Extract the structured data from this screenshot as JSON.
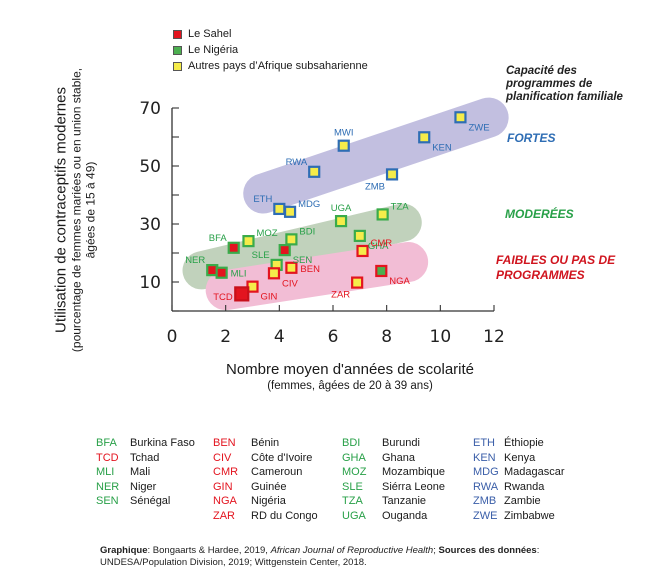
{
  "chart_data": {
    "type": "scatter",
    "title": "",
    "xlabel": "Nombre moyen d'années de scolarité",
    "xlabel_sub": "(femmes, âgées de 20 à 39 ans)",
    "ylabel": "Utilisation de contraceptifs modernes",
    "ylabel_sub1": "(pourcentage de femmes mariées ou en union stable,",
    "ylabel_sub2": "âgées de 15 à 49)",
    "xlim": [
      0,
      12
    ],
    "ylim": [
      0,
      70
    ],
    "x_ticks": [
      0,
      2,
      4,
      6,
      8,
      10,
      12
    ],
    "x_tick_labels": [
      "0",
      "2",
      "4",
      "6",
      "8",
      "10",
      "12"
    ],
    "y_ticks": [
      0,
      10,
      20,
      30,
      40,
      50,
      60,
      70
    ],
    "y_tick_labels": [
      {
        "value": 70,
        "label": "70"
      },
      {
        "value": 50,
        "label": "50"
      },
      {
        "value": 30,
        "label": "30"
      },
      {
        "value": 10,
        "label": "10"
      }
    ],
    "grid": false,
    "legend": {
      "placement": "top-left",
      "entries": [
        {
          "label": "Le Sahel",
          "fill": "#e3141f"
        },
        {
          "label": "Le Nigéria",
          "fill": "#4caf50"
        },
        {
          "label": "Autres pays d’Afrique subsaharienne",
          "fill": "#f5ec4a"
        }
      ]
    },
    "capacity_title": [
      "Capacité des",
      "programmes de",
      "planification familiale"
    ],
    "bands": [
      {
        "name": "FORTES",
        "label": "FORTES",
        "color": "#c2bfe0",
        "label_color": "#2e6db4",
        "from": [
          3.4,
          40.5
        ],
        "to": [
          11.8,
          66.7
        ]
      },
      {
        "name": "MODEREES",
        "label": "MODERÉES",
        "color": "#c1d2bc",
        "label_color": "#28a048",
        "from": [
          1.1,
          14.0
        ],
        "to": [
          8.6,
          30.5
        ]
      },
      {
        "name": "FAIBLES",
        "label_lines": [
          "FAIBLES OU PAS DE",
          "PROGRAMMES"
        ],
        "color": "#f2bdd5",
        "label_color": "#d0141e",
        "from": [
          2.0,
          7.2
        ],
        "to": [
          8.8,
          16.9
        ]
      }
    ],
    "series": [
      {
        "name": "Fortes",
        "border": "#2e6db4",
        "label_color": "#2e6db4",
        "points": [
          {
            "code": "ZWE",
            "x": 10.75,
            "y": 66.8,
            "group": "autres",
            "label_pos": "right-below"
          },
          {
            "code": "KEN",
            "x": 9.4,
            "y": 59.9,
            "group": "autres",
            "label_pos": "right-below"
          },
          {
            "code": "MWI",
            "x": 6.4,
            "y": 57.0,
            "group": "autres",
            "label_pos": "above"
          },
          {
            "code": "RWA",
            "x": 5.3,
            "y": 48.0,
            "group": "autres",
            "label_pos": "left-above"
          },
          {
            "code": "ZMB",
            "x": 8.2,
            "y": 47.1,
            "group": "autres",
            "label_pos": "left-below"
          },
          {
            "code": "ETH",
            "x": 4.0,
            "y": 35.2,
            "group": "autres",
            "label_pos": "left-above"
          },
          {
            "code": "MDG",
            "x": 4.4,
            "y": 34.2,
            "group": "autres",
            "label_pos": "right-above"
          }
        ]
      },
      {
        "name": "Moderees",
        "border": "#3aab4a",
        "label_color": "#28a048",
        "points": [
          {
            "code": "UGA",
            "x": 6.3,
            "y": 31.0,
            "group": "autres",
            "label_pos": "above"
          },
          {
            "code": "TZA",
            "x": 7.85,
            "y": 33.3,
            "group": "autres",
            "label_pos": "right-above"
          },
          {
            "code": "GHA",
            "x": 7.0,
            "y": 25.9,
            "group": "autres",
            "label_pos": "right-below"
          },
          {
            "code": "MOZ",
            "x": 2.85,
            "y": 24.1,
            "group": "autres",
            "label_pos": "right-above"
          },
          {
            "code": "BDI",
            "x": 4.45,
            "y": 24.7,
            "group": "autres",
            "label_pos": "right-above"
          },
          {
            "code": "BFA",
            "x": 2.3,
            "y": 21.8,
            "group": "sahel",
            "label_pos": "left-above"
          },
          {
            "code": "SEN",
            "x": 4.2,
            "y": 21.0,
            "group": "sahel",
            "label_pos": "right-below"
          },
          {
            "code": "NER",
            "x": 1.5,
            "y": 14.1,
            "group": "sahel",
            "label_pos": "left-above"
          },
          {
            "code": "MLI",
            "x": 1.85,
            "y": 13.2,
            "group": "sahel",
            "label_pos": "right"
          },
          {
            "code": "SLE",
            "x": 3.9,
            "y": 15.9,
            "group": "autres",
            "label_pos": "left-above"
          }
        ]
      },
      {
        "name": "Faibles",
        "border": "#e3141f",
        "label_color": "#e3141f",
        "points": [
          {
            "code": "CMR",
            "x": 7.1,
            "y": 20.7,
            "group": "autres",
            "label_pos": "right-above"
          },
          {
            "code": "BEN",
            "x": 4.45,
            "y": 14.9,
            "group": "autres",
            "label_pos": "right"
          },
          {
            "code": "CIV",
            "x": 3.8,
            "y": 13.0,
            "group": "autres",
            "label_pos": "right-below"
          },
          {
            "code": "NGA",
            "x": 7.8,
            "y": 13.8,
            "group": "nigeria",
            "label_pos": "right-below"
          },
          {
            "code": "ZAR",
            "x": 6.9,
            "y": 9.8,
            "group": "autres",
            "label_pos": "left-below"
          },
          {
            "code": "GIN",
            "x": 3.0,
            "y": 8.4,
            "group": "autres",
            "label_pos": "right-below"
          },
          {
            "code": "TCD",
            "x": 2.6,
            "y": 5.9,
            "group": "sahel",
            "label_pos": "left",
            "large": true
          }
        ]
      }
    ],
    "fill_colors": {
      "sahel": "#e3141f",
      "nigeria": "#4caf50",
      "autres": "#f5ec4a"
    }
  },
  "key": {
    "columns": [
      {
        "color": "#28a048",
        "rows": [
          {
            "code": "BFA",
            "name": "Burkina Faso",
            "color": "#28a048"
          },
          {
            "code": "TCD",
            "name": "Tchad",
            "color": "#e3141f"
          },
          {
            "code": "MLI",
            "name": "Mali",
            "color": "#28a048"
          },
          {
            "code": "NER",
            "name": "Niger",
            "color": "#28a048"
          },
          {
            "code": "SEN",
            "name": "Sénégal",
            "color": "#28a048"
          }
        ]
      },
      {
        "color": "#e3141f",
        "rows": [
          {
            "code": "BEN",
            "name": "Bénin",
            "color": "#e3141f"
          },
          {
            "code": "CIV",
            "name": "Côte d'Ivoire",
            "color": "#e3141f"
          },
          {
            "code": "CMR",
            "name": "Cameroun",
            "color": "#e3141f"
          },
          {
            "code": "GIN",
            "name": "Guinée",
            "color": "#e3141f"
          },
          {
            "code": "NGA",
            "name": "Nigéria",
            "color": "#e3141f"
          },
          {
            "code": "ZAR",
            "name": "RD du Congo",
            "color": "#e3141f"
          }
        ]
      },
      {
        "color": "#28a048",
        "rows": [
          {
            "code": "BDI",
            "name": "Burundi",
            "color": "#28a048"
          },
          {
            "code": "GHA",
            "name": "Ghana",
            "color": "#28a048"
          },
          {
            "code": "MOZ",
            "name": "Mozambique",
            "color": "#28a048"
          },
          {
            "code": "SLE",
            "name": "Siérra Leone",
            "color": "#28a048"
          },
          {
            "code": "TZA",
            "name": "Tanzanie",
            "color": "#28a048"
          },
          {
            "code": "UGA",
            "name": "Ouganda",
            "color": "#28a048"
          }
        ]
      },
      {
        "color": "#3a5ea8",
        "rows": [
          {
            "code": "ETH",
            "name": "Éthiopie",
            "color": "#3a5ea8"
          },
          {
            "code": "KEN",
            "name": "Kenya",
            "color": "#3a5ea8"
          },
          {
            "code": "MDG",
            "name": "Madagascar",
            "color": "#3a5ea8"
          },
          {
            "code": "RWA",
            "name": "Rwanda",
            "color": "#3a5ea8"
          },
          {
            "code": "ZMB",
            "name": "Zambie",
            "color": "#3a5ea8"
          },
          {
            "code": "ZWE",
            "name": "Zimbabwe",
            "color": "#3a5ea8"
          }
        ]
      }
    ]
  },
  "source": {
    "graph_label": "Graphique",
    "graph_text": ": Bongaarts & Hardee, 2019, ",
    "journal": "African Journal of Reproductive Health",
    "sep": "; ",
    "sources_label": "Sources des données",
    "sources_text": ": UNDESA/Population Division, 2019; Wittgenstein Center, 2018."
  }
}
